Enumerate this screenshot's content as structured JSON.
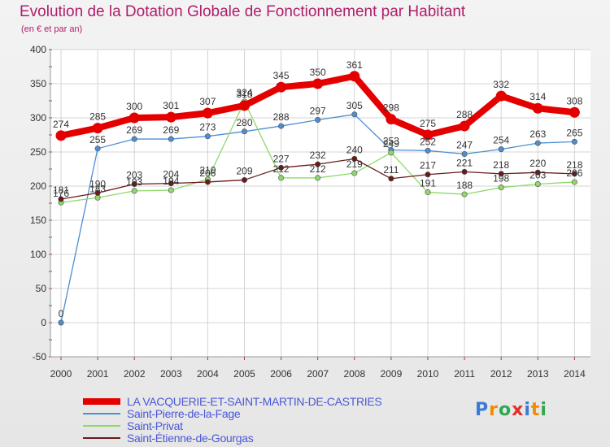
{
  "title": "Evolution de la Dotation Globale de Fonctionnement par Habitant",
  "subtitle": "(en € et par an)",
  "logo_text": "Proxiti",
  "chart_data": {
    "type": "line",
    "title": "Evolution de la Dotation Globale de Fonctionnement par Habitant",
    "ylabel": "(en € et par an)",
    "xlabel": "",
    "ylim": [
      -50,
      400
    ],
    "yticks": [
      -50,
      0,
      50,
      100,
      150,
      200,
      250,
      300,
      350,
      400
    ],
    "grid": true,
    "legend": "bottom-left",
    "categories": [
      "2000",
      "2001",
      "2002",
      "2003",
      "2004",
      "2005",
      "2006",
      "2007",
      "2008",
      "2009",
      "2010",
      "2011",
      "2012",
      "2013",
      "2014"
    ],
    "series": [
      {
        "name": "LA VACQUERIE-ET-SAINT-MARTIN-DE-CASTRIES",
        "color": "#e50000",
        "highlight": true,
        "values": [
          274,
          285,
          300,
          301,
          307,
          318,
          345,
          350,
          361,
          298,
          275,
          288,
          332,
          314,
          308
        ]
      },
      {
        "name": "Saint-Pierre-de-la-Fage",
        "color": "#4d8fd1",
        "values": [
          0,
          255,
          269,
          269,
          273,
          280,
          288,
          297,
          305,
          253,
          252,
          247,
          254,
          263,
          265
        ]
      },
      {
        "name": "Saint-Privat",
        "color": "#8fd96b",
        "values": [
          176,
          183,
          193,
          194,
          210,
          324,
          212,
          212,
          219,
          249,
          191,
          188,
          198,
          203,
          206
        ]
      },
      {
        "name": "Saint-Étienne-de-Gourgas",
        "color": "#6b1a1a",
        "values": [
          181,
          190,
          203,
          204,
          206,
          209,
          227,
          232,
          240,
          211,
          217,
          221,
          218,
          220,
          218
        ]
      }
    ]
  }
}
